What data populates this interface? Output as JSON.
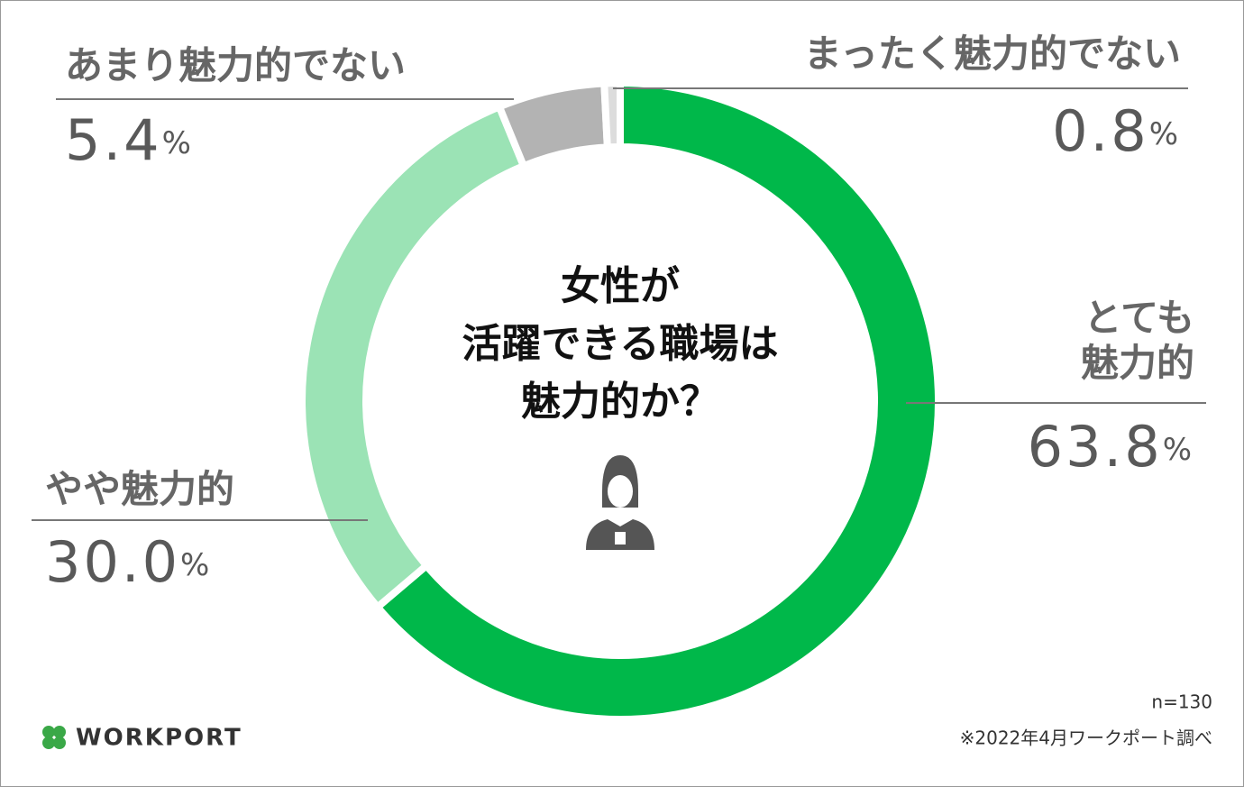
{
  "chart_data": {
    "type": "donut",
    "title": "女性が\n活躍できる職場は\n魅力的か？",
    "categories": [
      "とても\n魅力的",
      "やや魅力的",
      "あまり魅力的でない",
      "まったく魅力的でない"
    ],
    "values": [
      63.8,
      30.0,
      5.4,
      0.8
    ],
    "value_labels": [
      "63.8%",
      "30.0%",
      "5.4%",
      "0.8%"
    ],
    "colors": [
      "#00b84a",
      "#9be3b5",
      "#b3b3b3",
      "#dcdcdc"
    ],
    "sample_size": "n=130",
    "source": "※2022年4月ワークポート調べ",
    "brand": "WORKPORT"
  }
}
